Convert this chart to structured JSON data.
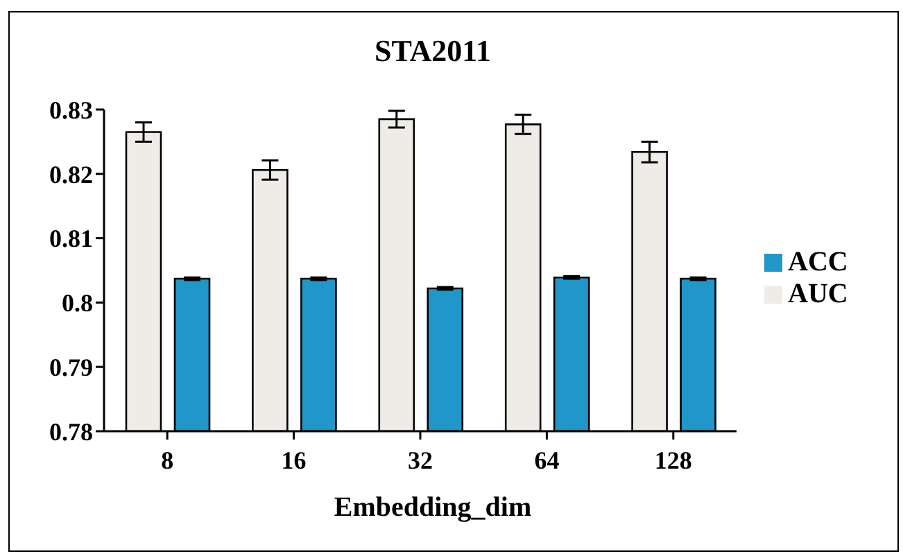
{
  "chart_data": {
    "type": "bar",
    "title": "STA2011",
    "xlabel": "Embedding_dim",
    "categories": [
      "8",
      "16",
      "32",
      "64",
      "128"
    ],
    "series": [
      {
        "name": "AUC",
        "color": "#efebe7",
        "values": [
          0.8265,
          0.8206,
          0.8285,
          0.8277,
          0.8234
        ],
        "errors": [
          0.0015,
          0.0015,
          0.0013,
          0.0015,
          0.0016
        ]
      },
      {
        "name": "ACC",
        "color": "#2196c9",
        "values": [
          0.8037,
          0.8037,
          0.8022,
          0.8039,
          0.8037
        ],
        "errors": [
          0.0002,
          0.0002,
          0.0002,
          0.0002,
          0.0002
        ]
      }
    ],
    "ylim": [
      0.78,
      0.83
    ],
    "yticks": [
      0.78,
      0.79,
      0.8,
      0.81,
      0.82,
      0.83
    ],
    "grid": false,
    "legend": "right"
  }
}
